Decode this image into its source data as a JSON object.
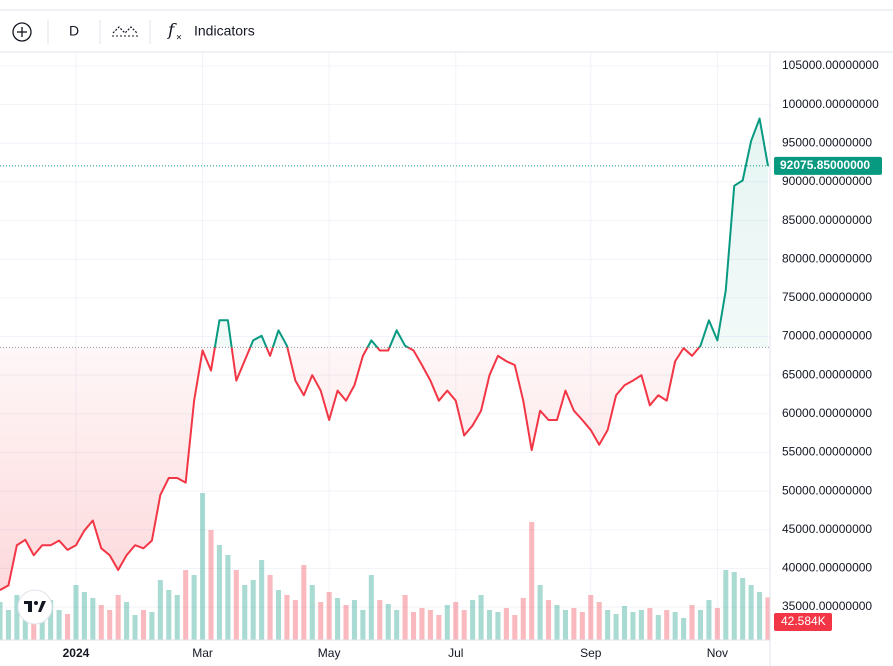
{
  "toolbar": {
    "interval": "D",
    "indicators": "Indicators"
  },
  "chart_data": {
    "type": "baseline",
    "categories": [
      null,
      null,
      null,
      null,
      null,
      null,
      null,
      null,
      null,
      "2024",
      null,
      null,
      null,
      null,
      null,
      null,
      null,
      null,
      null,
      null,
      null,
      null,
      null,
      null,
      "Mar",
      null,
      null,
      null,
      null,
      null,
      null,
      null,
      null,
      null,
      null,
      null,
      null,
      null,
      null,
      "May",
      null,
      null,
      null,
      null,
      null,
      null,
      null,
      null,
      null,
      null,
      null,
      null,
      null,
      null,
      "Jul",
      null,
      null,
      null,
      null,
      null,
      null,
      null,
      null,
      null,
      null,
      null,
      null,
      null,
      null,
      null,
      "Sep",
      null,
      null,
      null,
      null,
      null,
      null,
      null,
      null,
      null,
      null,
      null,
      null,
      null,
      null,
      "Nov",
      null,
      null,
      null,
      null,
      null,
      null
    ],
    "values": [
      37200,
      37800,
      43000,
      43700,
      41700,
      43000,
      43000,
      43600,
      42400,
      43000,
      44900,
      46200,
      42600,
      41700,
      39800,
      41700,
      43000,
      42600,
      43600,
      49500,
      51700,
      51700,
      51100,
      61700,
      68200,
      65600,
      72100,
      72100,
      64300,
      66900,
      69500,
      70100,
      67500,
      70800,
      68800,
      64300,
      62400,
      65000,
      63000,
      59200,
      63000,
      61700,
      63700,
      67500,
      69500,
      68200,
      68200,
      70800,
      68800,
      68200,
      66300,
      64300,
      61700,
      63000,
      61700,
      57200,
      58500,
      60400,
      65000,
      67500,
      66800,
      66300,
      61700,
      55300,
      60400,
      59200,
      59200,
      63000,
      60400,
      59200,
      57900,
      56000,
      57900,
      62400,
      63700,
      64300,
      65000,
      61100,
      62400,
      61700,
      66800,
      68500,
      67500,
      68800,
      72100,
      69500,
      76000,
      89500,
      90200,
      95300,
      98200,
      92075.85
    ],
    "baseline": 68600,
    "up_color": "#089981",
    "down_color": "#f23645",
    "last_price": {
      "value": 92075.85,
      "label": "92075.85000000"
    },
    "volume": {
      "values": [
        38,
        30,
        45,
        32,
        28,
        35,
        40,
        30,
        26,
        55,
        48,
        42,
        35,
        30,
        45,
        38,
        25,
        30,
        28,
        60,
        50,
        45,
        70,
        65,
        147,
        110,
        95,
        85,
        70,
        55,
        60,
        80,
        65,
        50,
        45,
        40,
        75,
        55,
        38,
        48,
        42,
        35,
        40,
        30,
        65,
        40,
        36,
        30,
        45,
        28,
        32,
        30,
        25,
        35,
        38,
        30,
        40,
        45,
        30,
        28,
        32,
        25,
        42,
        118,
        55,
        40,
        35,
        30,
        32,
        28,
        45,
        38,
        30,
        26,
        34,
        28,
        30,
        32,
        25,
        30,
        28,
        22,
        35,
        30,
        40,
        32,
        70,
        68,
        62,
        55,
        48,
        42.584
      ],
      "lim": [
        0,
        200
      ],
      "last": {
        "value": 42.584,
        "label": "42.584K"
      }
    },
    "ylim": [
      30740,
      106680
    ],
    "yticks": [
      {
        "value": 35000,
        "label": "35000.00000000"
      },
      {
        "value": 40000,
        "label": "40000.00000000"
      },
      {
        "value": 45000,
        "label": "45000.00000000"
      },
      {
        "value": 50000,
        "label": "50000.00000000"
      },
      {
        "value": 55000,
        "label": "55000.00000000"
      },
      {
        "value": 60000,
        "label": "60000.00000000"
      },
      {
        "value": 65000,
        "label": "65000.00000000"
      },
      {
        "value": 70000,
        "label": "70000.00000000"
      },
      {
        "value": 75000,
        "label": "75000.00000000"
      },
      {
        "value": 80000,
        "label": "80000.00000000"
      },
      {
        "value": 85000,
        "label": "85000.00000000"
      },
      {
        "value": 90000,
        "label": "90000.00000000"
      },
      {
        "value": 95000,
        "label": "95000.00000000"
      },
      {
        "value": 100000,
        "label": "100000.00000000"
      },
      {
        "value": 105000,
        "label": "105000.00000000"
      }
    ],
    "grid": true
  }
}
